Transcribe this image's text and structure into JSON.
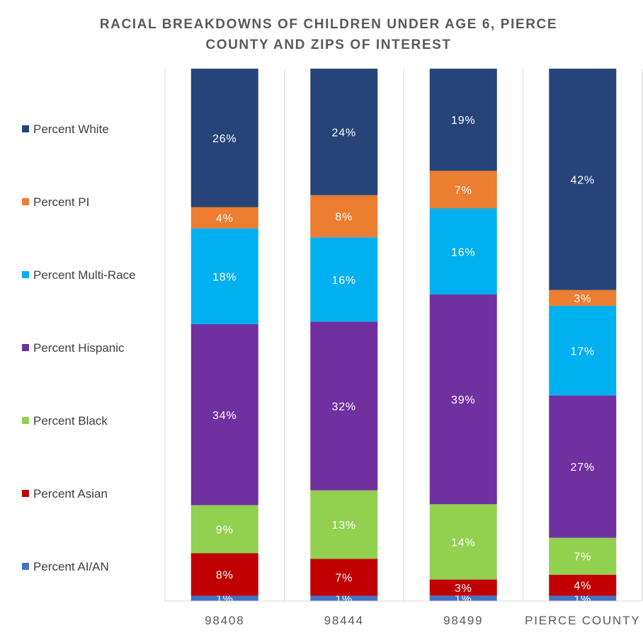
{
  "chart_data": {
    "type": "bar",
    "stacked": true,
    "percent_stacked": true,
    "title": "RACIAL BREAKDOWNS OF CHILDREN UNDER AGE 6, PIERCE COUNTY AND ZIPS OF INTEREST",
    "title_lines": [
      "RACIAL BREAKDOWNS OF CHILDREN UNDER AGE 6, PIERCE",
      "COUNTY AND ZIPS OF INTEREST"
    ],
    "categories": [
      "98408",
      "98444",
      "98499",
      "PIERCE COUNTY"
    ],
    "ylim": [
      0,
      100
    ],
    "grid": false,
    "legend_position": "left",
    "series": [
      {
        "name": "Percent AI/AN",
        "color": "#4472C4",
        "values": [
          1,
          1,
          1,
          1
        ],
        "labels": [
          "1%",
          "1%",
          "1%",
          "1%"
        ]
      },
      {
        "name": "Percent Asian",
        "color": "#C00000",
        "values": [
          8,
          7,
          3,
          4
        ],
        "labels": [
          "8%",
          "7%",
          "3%",
          "4%"
        ]
      },
      {
        "name": "Percent Black",
        "color": "#92D050",
        "values": [
          9,
          13,
          14,
          7
        ],
        "labels": [
          "9%",
          "13%",
          "14%",
          "7%"
        ]
      },
      {
        "name": "Percent Hispanic",
        "color": "#7030A0",
        "values": [
          34,
          32,
          39,
          27
        ],
        "labels": [
          "34%",
          "32%",
          "39%",
          "27%"
        ]
      },
      {
        "name": "Percent Multi-Race",
        "color": "#00B0F0",
        "values": [
          18,
          16,
          16,
          17
        ],
        "labels": [
          "18%",
          "16%",
          "16%",
          "17%"
        ]
      },
      {
        "name": "Percent PI",
        "color": "#ED7D31",
        "values": [
          4,
          8,
          7,
          3
        ],
        "labels": [
          "4%",
          "8%",
          "7%",
          "3%"
        ]
      },
      {
        "name": "Percent White",
        "color": "#264478",
        "values": [
          26,
          24,
          19,
          42
        ],
        "labels": [
          "26%",
          "24%",
          "19%",
          "42%"
        ]
      }
    ],
    "legend_order": [
      "Percent White",
      "Percent PI",
      "Percent Multi-Race",
      "Percent Hispanic",
      "Percent Black",
      "Percent Asian",
      "Percent AI/AN"
    ]
  }
}
